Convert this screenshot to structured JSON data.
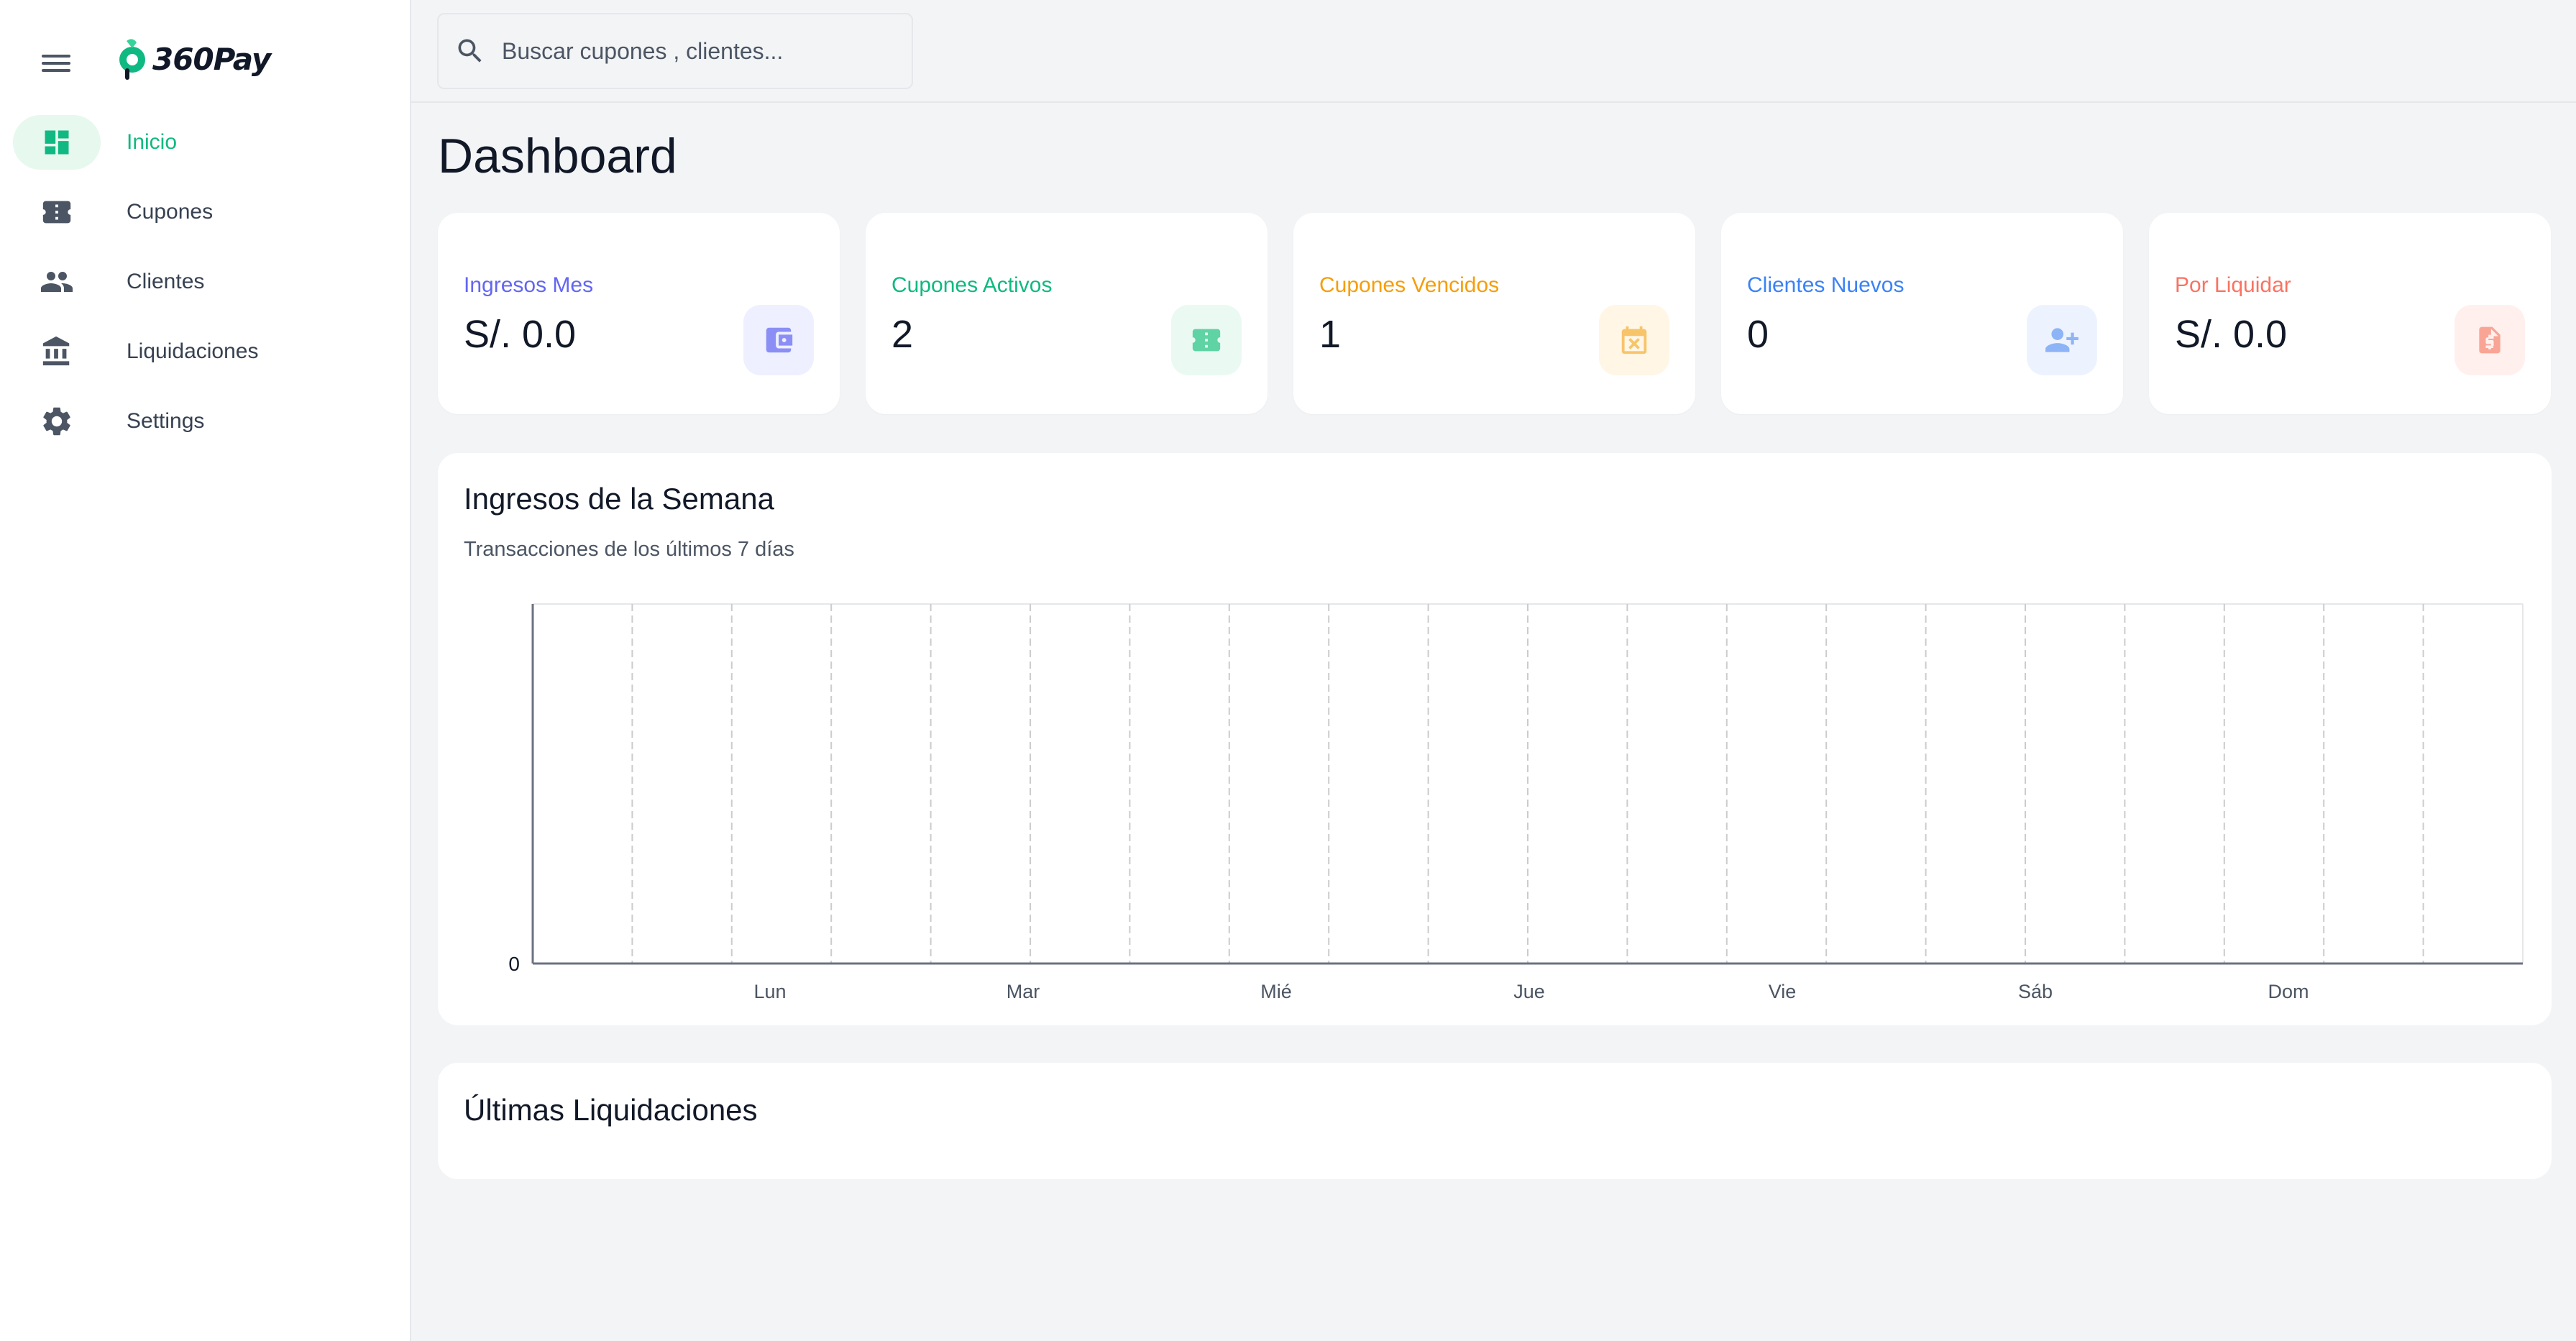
{
  "brand": {
    "name": "360Pay",
    "accent": "#10b981"
  },
  "sidebar": {
    "items": [
      {
        "label": "Inicio",
        "icon": "dashboard-icon",
        "active": true
      },
      {
        "label": "Cupones",
        "icon": "ticket-icon",
        "active": false
      },
      {
        "label": "Clientes",
        "icon": "people-icon",
        "active": false
      },
      {
        "label": "Liquidaciones",
        "icon": "bank-icon",
        "active": false
      },
      {
        "label": "Settings",
        "icon": "gear-icon",
        "active": false
      }
    ]
  },
  "search": {
    "placeholder": "Buscar cupones , clientes..."
  },
  "page": {
    "title": "Dashboard"
  },
  "stats": [
    {
      "label": "Ingresos Mes",
      "value": "S/. 0.0",
      "color": "#6366f1",
      "icon": "wallet-icon"
    },
    {
      "label": "Cupones Activos",
      "value": "2",
      "color": "#10b981",
      "icon": "ticket-icon"
    },
    {
      "label": "Cupones Vencidos",
      "value": "1",
      "color": "#f59e0b",
      "icon": "calendar-x-icon"
    },
    {
      "label": "Clientes Nuevos",
      "value": "0",
      "color": "#3b82f6",
      "icon": "person-add-icon"
    },
    {
      "label": "Por Liquidar",
      "value": "S/. 0.0",
      "color": "#f97362",
      "icon": "invoice-dollar-icon"
    }
  ],
  "weekly": {
    "title": "Ingresos de la Semana",
    "subtitle": "Transacciones de los últimos 7 días"
  },
  "chart_data": {
    "type": "line",
    "categories": [
      "Lun",
      "Mar",
      "Mié",
      "Jue",
      "Vie",
      "Sáb",
      "Dom"
    ],
    "values": [
      0,
      0,
      0,
      0,
      0,
      0,
      0
    ],
    "yticks": [
      "0"
    ],
    "grid": true
  },
  "liquidaciones": {
    "title": "Últimas Liquidaciones"
  }
}
